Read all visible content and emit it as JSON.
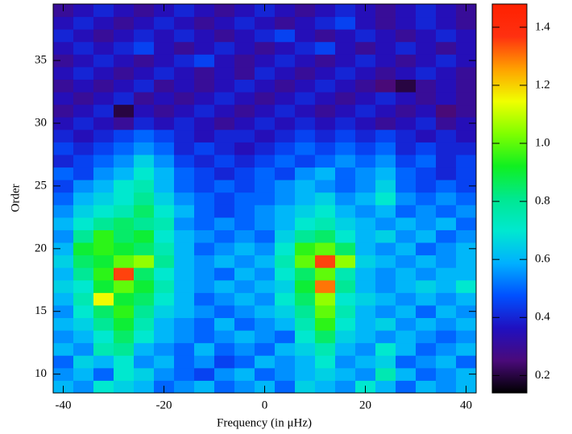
{
  "chart_data": {
    "type": "heatmap",
    "xlabel": "Frequency (in μHz)",
    "ylabel": "Order",
    "x": [
      -40,
      -36,
      -32,
      -28,
      -24,
      -20,
      -16,
      -12,
      -8,
      -4,
      0,
      4,
      8,
      12,
      16,
      20,
      24,
      28,
      32,
      36,
      40
    ],
    "y": [
      9,
      10,
      11,
      12,
      13,
      14,
      15,
      16,
      17,
      18,
      19,
      20,
      21,
      22,
      23,
      24,
      25,
      26,
      27,
      28,
      29,
      30,
      31,
      32,
      33,
      34,
      35,
      36,
      37,
      38,
      39
    ],
    "z": [
      [
        0.6,
        0.55,
        0.7,
        0.65,
        0.6,
        0.5,
        0.55,
        0.6,
        0.5,
        0.55,
        0.6,
        0.5,
        0.65,
        0.6,
        0.55,
        0.7,
        0.6,
        0.5,
        0.6,
        0.55,
        0.6
      ],
      [
        0.55,
        0.6,
        0.5,
        0.7,
        0.65,
        0.55,
        0.5,
        0.45,
        0.55,
        0.6,
        0.5,
        0.55,
        0.6,
        0.65,
        0.6,
        0.55,
        0.75,
        0.6,
        0.5,
        0.55,
        0.6
      ],
      [
        0.5,
        0.65,
        0.6,
        0.7,
        0.55,
        0.6,
        0.5,
        0.55,
        0.45,
        0.5,
        0.6,
        0.55,
        0.6,
        0.7,
        0.55,
        0.6,
        0.65,
        0.5,
        0.55,
        0.6,
        0.5
      ],
      [
        0.6,
        0.55,
        0.75,
        0.8,
        0.6,
        0.55,
        0.5,
        0.6,
        0.5,
        0.55,
        0.5,
        0.6,
        0.65,
        0.75,
        0.6,
        0.55,
        0.7,
        0.6,
        0.5,
        0.55,
        0.6
      ],
      [
        0.55,
        0.6,
        0.7,
        0.85,
        0.7,
        0.6,
        0.55,
        0.5,
        0.55,
        0.6,
        0.55,
        0.5,
        0.7,
        0.85,
        0.65,
        0.6,
        0.55,
        0.6,
        0.55,
        0.5,
        0.55
      ],
      [
        0.6,
        0.65,
        0.8,
        0.9,
        0.75,
        0.6,
        0.55,
        0.5,
        0.6,
        0.5,
        0.55,
        0.6,
        0.75,
        0.95,
        0.7,
        0.6,
        0.65,
        0.55,
        0.6,
        0.55,
        0.6
      ],
      [
        0.55,
        0.7,
        0.85,
        0.95,
        0.8,
        0.65,
        0.6,
        0.55,
        0.5,
        0.55,
        0.6,
        0.65,
        0.8,
        1.0,
        0.75,
        0.6,
        0.55,
        0.6,
        0.5,
        0.6,
        0.55
      ],
      [
        0.6,
        0.75,
        1.15,
        0.9,
        0.85,
        0.7,
        0.6,
        0.5,
        0.55,
        0.6,
        0.55,
        0.7,
        0.85,
        1.05,
        0.7,
        0.65,
        0.6,
        0.55,
        0.6,
        0.55,
        0.6
      ],
      [
        0.65,
        0.7,
        0.9,
        1.0,
        0.9,
        0.75,
        0.6,
        0.55,
        0.6,
        0.55,
        0.6,
        0.65,
        0.9,
        1.3,
        0.8,
        0.6,
        0.55,
        0.6,
        0.65,
        0.6,
        0.7
      ],
      [
        0.6,
        0.8,
        0.95,
        1.35,
        0.85,
        0.7,
        0.6,
        0.55,
        0.5,
        0.6,
        0.55,
        0.7,
        0.85,
        1.0,
        0.75,
        0.6,
        0.55,
        0.6,
        0.55,
        0.6,
        0.6
      ],
      [
        0.65,
        0.85,
        0.9,
        1.0,
        1.05,
        0.8,
        0.6,
        0.55,
        0.6,
        0.55,
        0.6,
        0.75,
        1.0,
        1.35,
        1.05,
        0.65,
        0.6,
        0.55,
        0.6,
        0.55,
        0.6
      ],
      [
        0.6,
        0.9,
        0.95,
        0.9,
        0.85,
        0.75,
        0.6,
        0.5,
        0.55,
        0.6,
        0.55,
        0.7,
        0.95,
        1.0,
        0.85,
        0.6,
        0.55,
        0.6,
        0.5,
        0.55,
        0.6
      ],
      [
        0.55,
        0.8,
        0.95,
        0.85,
        0.9,
        0.7,
        0.6,
        0.55,
        0.5,
        0.55,
        0.5,
        0.65,
        0.8,
        0.85,
        0.7,
        0.6,
        0.65,
        0.55,
        0.6,
        0.5,
        0.55
      ],
      [
        0.6,
        0.7,
        0.8,
        0.85,
        0.8,
        0.75,
        0.55,
        0.5,
        0.55,
        0.5,
        0.55,
        0.6,
        0.7,
        0.75,
        0.65,
        0.6,
        0.55,
        0.6,
        0.55,
        0.6,
        0.5
      ],
      [
        0.55,
        0.65,
        0.7,
        0.75,
        0.85,
        0.7,
        0.6,
        0.5,
        0.45,
        0.5,
        0.55,
        0.6,
        0.65,
        0.7,
        0.6,
        0.55,
        0.6,
        0.5,
        0.55,
        0.5,
        0.55
      ],
      [
        0.5,
        0.6,
        0.65,
        0.7,
        0.8,
        0.65,
        0.55,
        0.5,
        0.45,
        0.5,
        0.5,
        0.55,
        0.6,
        0.65,
        0.55,
        0.6,
        0.7,
        0.55,
        0.5,
        0.55,
        0.5
      ],
      [
        0.45,
        0.55,
        0.6,
        0.7,
        0.75,
        0.6,
        0.5,
        0.45,
        0.5,
        0.45,
        0.5,
        0.55,
        0.6,
        0.55,
        0.5,
        0.55,
        0.65,
        0.5,
        0.45,
        0.5,
        0.45
      ],
      [
        0.5,
        0.45,
        0.55,
        0.6,
        0.7,
        0.6,
        0.5,
        0.45,
        0.4,
        0.45,
        0.5,
        0.45,
        0.55,
        0.6,
        0.5,
        0.55,
        0.6,
        0.5,
        0.45,
        0.4,
        0.45
      ],
      [
        0.4,
        0.45,
        0.5,
        0.55,
        0.65,
        0.55,
        0.45,
        0.4,
        0.45,
        0.4,
        0.45,
        0.5,
        0.45,
        0.5,
        0.55,
        0.5,
        0.55,
        0.45,
        0.5,
        0.4,
        0.45
      ],
      [
        0.45,
        0.4,
        0.45,
        0.5,
        0.55,
        0.5,
        0.4,
        0.45,
        0.4,
        0.35,
        0.4,
        0.45,
        0.5,
        0.45,
        0.5,
        0.45,
        0.5,
        0.4,
        0.45,
        0.4,
        0.4
      ],
      [
        0.4,
        0.35,
        0.4,
        0.45,
        0.5,
        0.45,
        0.4,
        0.35,
        0.4,
        0.4,
        0.35,
        0.4,
        0.45,
        0.4,
        0.45,
        0.4,
        0.45,
        0.4,
        0.35,
        0.4,
        0.35
      ],
      [
        0.35,
        0.4,
        0.35,
        0.3,
        0.4,
        0.35,
        0.4,
        0.35,
        0.3,
        0.35,
        0.4,
        0.35,
        0.4,
        0.35,
        0.4,
        0.35,
        0.3,
        0.35,
        0.4,
        0.3,
        0.35
      ],
      [
        0.3,
        0.35,
        0.4,
        0.2,
        0.35,
        0.3,
        0.35,
        0.4,
        0.35,
        0.3,
        0.35,
        0.4,
        0.35,
        0.3,
        0.35,
        0.4,
        0.35,
        0.3,
        0.35,
        0.25,
        0.3
      ],
      [
        0.35,
        0.3,
        0.35,
        0.4,
        0.3,
        0.35,
        0.3,
        0.35,
        0.4,
        0.35,
        0.3,
        0.35,
        0.4,
        0.35,
        0.3,
        0.35,
        0.4,
        0.35,
        0.3,
        0.35,
        0.3
      ],
      [
        0.3,
        0.35,
        0.3,
        0.35,
        0.4,
        0.3,
        0.35,
        0.3,
        0.35,
        0.4,
        0.35,
        0.3,
        0.35,
        0.4,
        0.35,
        0.3,
        0.25,
        0.2,
        0.3,
        0.35,
        0.3
      ],
      [
        0.35,
        0.4,
        0.35,
        0.3,
        0.35,
        0.4,
        0.35,
        0.3,
        0.35,
        0.3,
        0.4,
        0.35,
        0.3,
        0.35,
        0.4,
        0.35,
        0.3,
        0.35,
        0.4,
        0.35,
        0.3
      ],
      [
        0.3,
        0.35,
        0.4,
        0.35,
        0.3,
        0.35,
        0.4,
        0.45,
        0.35,
        0.3,
        0.35,
        0.4,
        0.35,
        0.3,
        0.35,
        0.4,
        0.35,
        0.3,
        0.35,
        0.4,
        0.35
      ],
      [
        0.35,
        0.4,
        0.35,
        0.4,
        0.45,
        0.35,
        0.3,
        0.35,
        0.4,
        0.35,
        0.3,
        0.35,
        0.4,
        0.45,
        0.35,
        0.3,
        0.35,
        0.4,
        0.35,
        0.3,
        0.35
      ],
      [
        0.4,
        0.35,
        0.3,
        0.35,
        0.4,
        0.35,
        0.4,
        0.35,
        0.3,
        0.35,
        0.4,
        0.45,
        0.35,
        0.3,
        0.35,
        0.4,
        0.35,
        0.3,
        0.35,
        0.4,
        0.35
      ],
      [
        0.35,
        0.4,
        0.35,
        0.3,
        0.35,
        0.4,
        0.35,
        0.3,
        0.35,
        0.4,
        0.35,
        0.3,
        0.35,
        0.4,
        0.45,
        0.35,
        0.3,
        0.35,
        0.4,
        0.35,
        0.3
      ],
      [
        0.3,
        0.35,
        0.4,
        0.35,
        0.3,
        0.35,
        0.4,
        0.35,
        0.3,
        0.35,
        0.4,
        0.35,
        0.3,
        0.35,
        0.4,
        0.35,
        0.3,
        0.35,
        0.4,
        0.35,
        0.3
      ]
    ],
    "xlim": [
      -42,
      42
    ],
    "xticks": [
      -40,
      -20,
      0,
      20,
      40
    ],
    "ylim": [
      8.5,
      39.5
    ],
    "yticks": [
      10,
      15,
      20,
      25,
      30,
      35
    ],
    "zlim": [
      0.14,
      1.48
    ],
    "zticks": [
      0.2,
      0.4,
      0.6,
      0.8,
      1.0,
      1.2,
      1.4
    ],
    "colormap": [
      "#000000",
      "#4a0a7a",
      "#2010c0",
      "#0050ff",
      "#00b0ff",
      "#00e8d0",
      "#00e890",
      "#10f020",
      "#80ff00",
      "#f0ff00",
      "#ffa000",
      "#ff3010",
      "#ff2000"
    ]
  }
}
